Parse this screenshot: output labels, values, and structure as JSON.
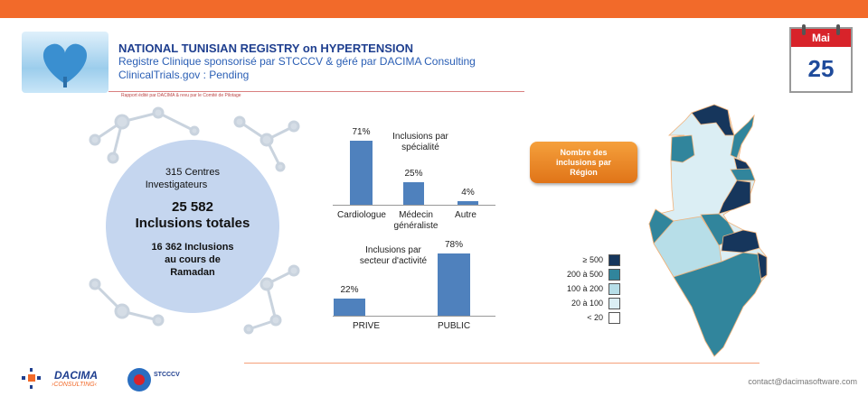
{
  "header": {
    "title": "NATIONAL TUNISIAN REGISTRY on HYPERTENSION",
    "subtitle": "Registre Clinique sponsorisé par STCCCV & géré par DACIMA Consulting",
    "trial": "ClinicalTrials.gov : Pending",
    "note": "Rapport édité par DACIMA & revu par le Comité de Pilotage"
  },
  "calendar": {
    "month": "Mai",
    "day": "25"
  },
  "summary": {
    "centres": "315 Centres",
    "centres2": "Investigateurs",
    "total": "25 582",
    "total_label": "Inclusions totales",
    "ramadan1": "16 362 Inclusions",
    "ramadan2": "au cours de",
    "ramadan3": "Ramadan"
  },
  "chart_data": [
    {
      "type": "bar",
      "title": "Inclusions par spécialité",
      "categories": [
        "Cardiologue",
        "Médecin généraliste",
        "Autre"
      ],
      "values": [
        71,
        25,
        4
      ],
      "labels": [
        "71%",
        "25%",
        "4%"
      ],
      "unit": "%"
    },
    {
      "type": "bar",
      "title": "Inclusions par secteur d'activité",
      "categories": [
        "PRIVE",
        "PUBLIC"
      ],
      "values": [
        22,
        78
      ],
      "labels": [
        "22%",
        "78%"
      ],
      "unit": "%"
    }
  ],
  "charts_text": {
    "c1_title1": "Inclusions par",
    "c1_title2": "spécialité",
    "c1_cat2a": "Médecin",
    "c1_cat2b": "généraliste",
    "c2_title1": "Inclusions par",
    "c2_title2": "secteur d'activité"
  },
  "map": {
    "button": [
      "Nombre des",
      "inclusions par",
      "Région"
    ],
    "legend": [
      {
        "label": "≥ 500",
        "color": "#16365c"
      },
      {
        "label": "200 à 500",
        "color": "#31859c"
      },
      {
        "label": "100 à 200",
        "color": "#b7dee8"
      },
      {
        "label": "20 à 100",
        "color": "#dbeef4"
      },
      {
        "label": "< 20",
        "color": "#ffffff"
      }
    ]
  },
  "footer": {
    "dacima": "DACIMA",
    "consulting": "›CONSULTING‹",
    "stcccv": "STCCCV",
    "contact": "contact@dacimasoftware.com"
  }
}
